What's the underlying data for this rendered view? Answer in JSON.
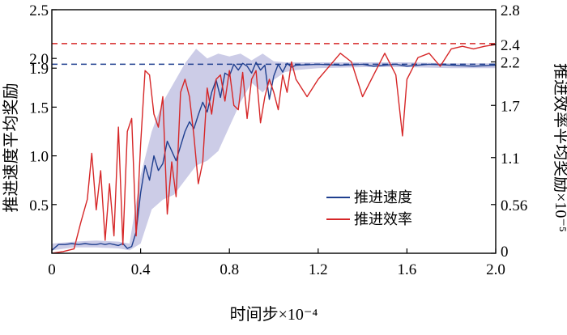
{
  "chart_data": {
    "type": "line",
    "xlabel": "时间步×10⁻⁴",
    "ylabel_left": "推进速度平均奖励",
    "ylabel_right": "推进效率平均奖励×10⁻⁵",
    "xlim": [
      0,
      2.0
    ],
    "ylim_left": [
      0,
      2.5
    ],
    "ylim_right": [
      0,
      2.8
    ],
    "x_ticks": [
      "0",
      "0.4",
      "0.8",
      "1.2",
      "1.6",
      "2.0"
    ],
    "y_ticks_left": [
      "0.5",
      "1.0",
      "1.5",
      "1.9",
      "2.0",
      "2.5"
    ],
    "y_ticks_right": [
      "0",
      "0.56",
      "1.1",
      "1.7",
      "2.2",
      "2.4",
      "2.8"
    ],
    "reference_lines": [
      {
        "axis": "left",
        "value": 1.94,
        "color": "#1f3f8f",
        "style": "dashed"
      },
      {
        "axis": "right",
        "value": 2.41,
        "color": "#d62728",
        "style": "dashed"
      }
    ],
    "legend_position": "lower-right",
    "colors": {
      "speed": "#1f3f8f",
      "efficiency": "#d62728",
      "band": "#c6c6e4"
    },
    "series": [
      {
        "name": "推进速度",
        "axis": "left",
        "color": "#1f3f8f",
        "x": [
          0.0,
          0.03,
          0.06,
          0.09,
          0.12,
          0.15,
          0.18,
          0.2,
          0.22,
          0.24,
          0.26,
          0.28,
          0.3,
          0.32,
          0.34,
          0.36,
          0.38,
          0.4,
          0.42,
          0.44,
          0.46,
          0.48,
          0.5,
          0.52,
          0.54,
          0.56,
          0.58,
          0.6,
          0.62,
          0.64,
          0.66,
          0.68,
          0.7,
          0.72,
          0.74,
          0.76,
          0.78,
          0.8,
          0.82,
          0.84,
          0.86,
          0.88,
          0.9,
          0.92,
          0.94,
          0.96,
          0.98,
          1.0,
          1.02,
          1.04,
          1.06,
          1.08,
          1.1,
          1.2,
          1.3,
          1.4,
          1.45,
          1.5,
          1.55,
          1.6,
          1.65,
          1.7,
          1.8,
          1.9,
          2.0
        ],
        "values": [
          0.03,
          0.09,
          0.09,
          0.1,
          0.09,
          0.1,
          0.09,
          0.09,
          0.1,
          0.09,
          0.1,
          0.09,
          0.08,
          0.1,
          0.05,
          0.07,
          0.22,
          0.62,
          0.9,
          0.75,
          1.0,
          0.85,
          0.92,
          1.15,
          1.05,
          0.95,
          1.1,
          1.25,
          1.35,
          1.28,
          1.42,
          1.55,
          1.45,
          1.65,
          1.78,
          1.6,
          1.85,
          1.82,
          1.94,
          1.88,
          1.95,
          1.92,
          1.85,
          1.96,
          1.88,
          1.93,
          1.58,
          1.82,
          1.94,
          1.86,
          1.95,
          1.91,
          1.93,
          1.94,
          1.93,
          1.94,
          1.92,
          1.93,
          1.94,
          1.92,
          1.93,
          1.94,
          1.93,
          1.92,
          1.93
        ]
      },
      {
        "name": "推进效率",
        "axis": "right",
        "color": "#d62728",
        "x": [
          0.0,
          0.05,
          0.1,
          0.13,
          0.16,
          0.18,
          0.2,
          0.22,
          0.24,
          0.26,
          0.28,
          0.3,
          0.32,
          0.34,
          0.36,
          0.38,
          0.4,
          0.42,
          0.44,
          0.46,
          0.48,
          0.5,
          0.52,
          0.54,
          0.56,
          0.58,
          0.6,
          0.62,
          0.64,
          0.66,
          0.68,
          0.7,
          0.72,
          0.74,
          0.76,
          0.78,
          0.8,
          0.82,
          0.84,
          0.86,
          0.88,
          0.9,
          0.92,
          0.94,
          0.96,
          0.98,
          1.0,
          1.02,
          1.04,
          1.06,
          1.08,
          1.1,
          1.15,
          1.2,
          1.25,
          1.3,
          1.35,
          1.4,
          1.45,
          1.5,
          1.55,
          1.58,
          1.6,
          1.65,
          1.7,
          1.75,
          1.8,
          1.85,
          1.9,
          1.95,
          2.0
        ],
        "values": [
          0.0,
          0.02,
          0.05,
          0.35,
          0.62,
          1.15,
          0.5,
          0.95,
          0.15,
          0.8,
          0.2,
          1.45,
          0.1,
          1.4,
          1.55,
          0.2,
          1.25,
          2.1,
          2.05,
          1.6,
          1.45,
          1.8,
          0.45,
          1.05,
          0.65,
          1.85,
          2.0,
          1.8,
          1.35,
          0.8,
          1.05,
          1.9,
          1.6,
          2.0,
          2.05,
          1.75,
          2.1,
          1.7,
          1.65,
          2.08,
          1.55,
          2.0,
          2.1,
          1.5,
          1.8,
          2.0,
          1.85,
          1.65,
          2.05,
          1.85,
          2.2,
          2.0,
          1.8,
          2.0,
          2.15,
          2.3,
          2.2,
          1.8,
          2.05,
          2.3,
          2.05,
          1.35,
          2.0,
          2.25,
          2.3,
          2.15,
          2.35,
          2.38,
          2.35,
          2.38,
          2.4
        ]
      }
    ],
    "band": {
      "axis": "left",
      "x": [
        0.0,
        0.1,
        0.2,
        0.3,
        0.35,
        0.4,
        0.45,
        0.5,
        0.55,
        0.6,
        0.65,
        0.7,
        0.75,
        0.8,
        0.85,
        0.9,
        0.95,
        1.0,
        1.05,
        1.1,
        1.2,
        1.4,
        1.6,
        1.8,
        2.0
      ],
      "upper": [
        0.1,
        0.12,
        0.13,
        0.12,
        0.1,
        0.8,
        1.25,
        1.55,
        1.75,
        1.95,
        2.1,
        2.0,
        2.05,
        2.02,
        2.05,
        1.98,
        2.05,
        1.97,
        1.96,
        1.96,
        1.96,
        1.96,
        1.96,
        1.95,
        1.95
      ],
      "lower": [
        0.03,
        0.06,
        0.06,
        0.05,
        0.03,
        0.1,
        0.45,
        0.55,
        0.6,
        0.75,
        0.9,
        0.95,
        1.05,
        1.3,
        1.55,
        1.75,
        1.65,
        1.78,
        1.86,
        1.88,
        1.9,
        1.91,
        1.91,
        1.9,
        1.9
      ]
    }
  }
}
